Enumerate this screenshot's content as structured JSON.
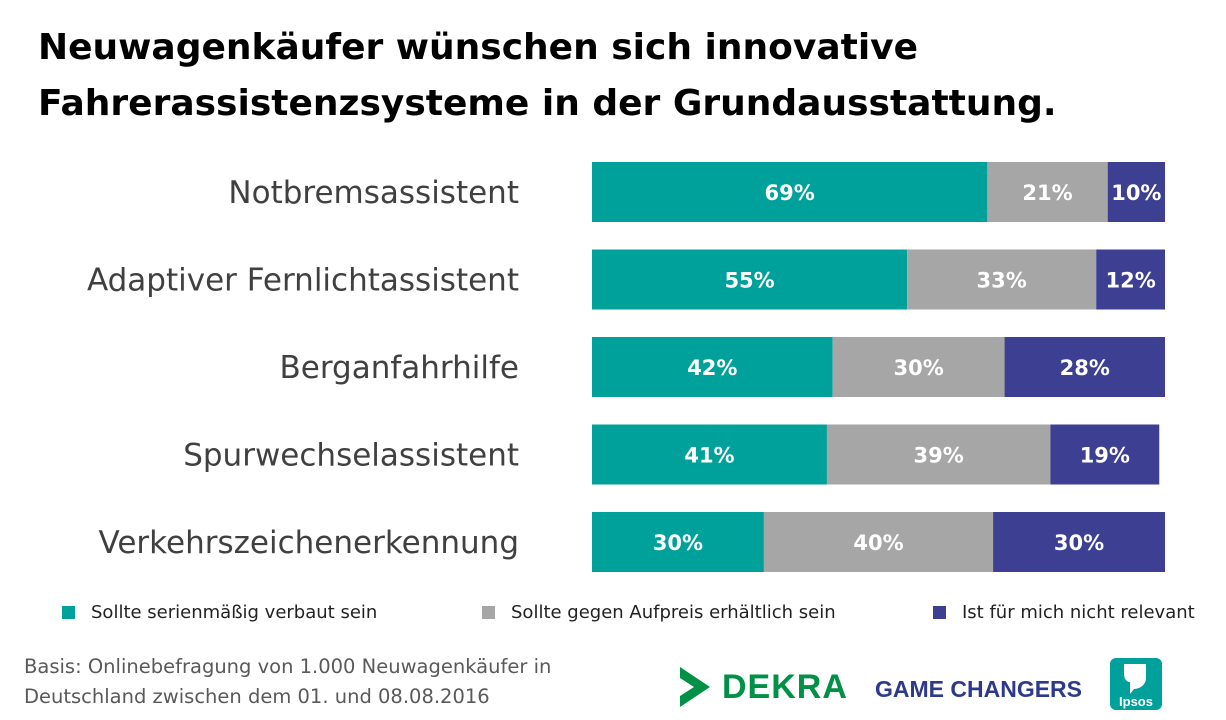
{
  "title": "Neuwagenkäufer wünschen sich innovative Fahrerassistenzsysteme in der Grundausstattung.",
  "chart_data": {
    "type": "bar",
    "orientation": "horizontal",
    "stacked": true,
    "categories": [
      "Notbremsassistent",
      "Adaptiver Fernlichtassistent",
      "Berganfahrhilfe",
      "Spurwechselassistent",
      "Verkehrszeichenerkennung"
    ],
    "series": [
      {
        "name": "Sollte serienmäßig verbaut sein",
        "values": [
          69,
          55,
          42,
          41,
          30
        ],
        "labels": [
          "69%",
          "55%",
          "42%",
          "41%",
          "30%"
        ],
        "color": "#00a19a"
      },
      {
        "name": "Sollte gegen Aufpreis erhältlich sein",
        "values": [
          21,
          33,
          30,
          39,
          40
        ],
        "labels": [
          "21%",
          "33%",
          "30%",
          "39%",
          "40%"
        ],
        "color": "#a6a6a6"
      },
      {
        "name": "Ist für mich nicht relevant",
        "values": [
          10,
          12,
          28,
          19,
          30
        ],
        "labels": [
          "10%",
          "12%",
          "28%",
          "19%",
          "30%"
        ],
        "color": "#3c3f92"
      }
    ],
    "xlim": [
      0,
      100
    ],
    "grid": false,
    "legend_position": "bottom"
  },
  "basis": {
    "line1": "Basis:  Onlinebefragung von 1.000 Neuwagenkäufer in",
    "line2": "Deutschland zwischen dem 01. und 08.08.2016"
  },
  "logos": {
    "dekra": "DEKRA",
    "game_changers": "GAME CHANGERS",
    "ipsos": "Ipsos"
  },
  "colors": {
    "dekra_green": "#009046",
    "ipsos_teal": "#00a19a",
    "game_changers_blue": "#2d3a8c"
  }
}
